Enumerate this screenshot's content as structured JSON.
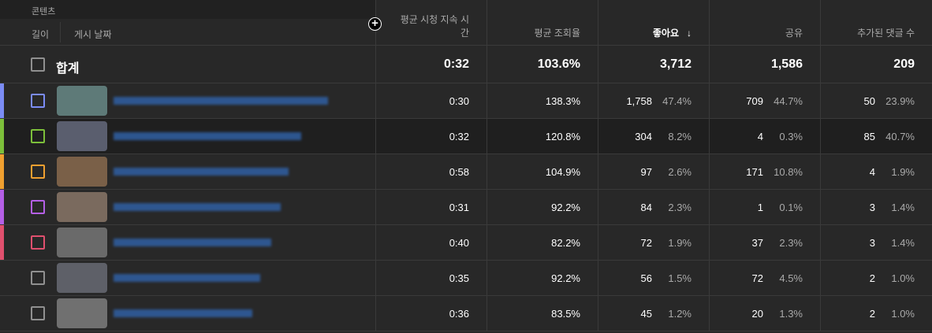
{
  "header": {
    "content": "콘텐츠",
    "length": "길이",
    "publish_date": "게시 날짜",
    "columns": [
      "평균 시청 지속 시간",
      "평균 조회율",
      "좋아요",
      "공유",
      "추가된 댓글 수"
    ],
    "sort_icon": "arrow-down-icon",
    "sorted_column": "좋아요"
  },
  "total": {
    "label": "합계",
    "values": [
      "0:32",
      "103.6%",
      "3,712",
      "1,586",
      "209"
    ]
  },
  "rows": [
    {
      "color": "#7b8cf5",
      "thumb": "#5e7a78",
      "duration": "0:30",
      "rate": "138.3%",
      "likes": "1,758",
      "likes_pct": "47.4%",
      "shares": "709",
      "shares_pct": "44.7%",
      "comments": "50",
      "comments_pct": "23.9%"
    },
    {
      "color": "#7cbf3a",
      "thumb": "#5a5e6e",
      "duration": "0:32",
      "rate": "120.8%",
      "likes": "304",
      "likes_pct": "8.2%",
      "shares": "4",
      "shares_pct": "0.3%",
      "comments": "85",
      "comments_pct": "40.7%"
    },
    {
      "color": "#f0a030",
      "thumb": "#7a6048",
      "duration": "0:58",
      "rate": "104.9%",
      "likes": "97",
      "likes_pct": "2.6%",
      "shares": "171",
      "shares_pct": "10.8%",
      "comments": "4",
      "comments_pct": "1.9%"
    },
    {
      "color": "#b45fe6",
      "thumb": "#7a6a5e",
      "duration": "0:31",
      "rate": "92.2%",
      "likes": "84",
      "likes_pct": "2.3%",
      "shares": "1",
      "shares_pct": "0.1%",
      "comments": "3",
      "comments_pct": "1.4%"
    },
    {
      "color": "#e0506e",
      "thumb": "#6a6a6a",
      "duration": "0:40",
      "rate": "82.2%",
      "likes": "72",
      "likes_pct": "1.9%",
      "shares": "37",
      "shares_pct": "2.3%",
      "comments": "3",
      "comments_pct": "1.4%"
    },
    {
      "color": "",
      "thumb": "#5e6068",
      "duration": "0:35",
      "rate": "92.2%",
      "likes": "56",
      "likes_pct": "1.5%",
      "shares": "72",
      "shares_pct": "4.5%",
      "comments": "2",
      "comments_pct": "1.0%"
    },
    {
      "color": "",
      "thumb": "#707070",
      "duration": "0:36",
      "rate": "83.5%",
      "likes": "45",
      "likes_pct": "1.2%",
      "shares": "20",
      "shares_pct": "1.3%",
      "comments": "2",
      "comments_pct": "1.0%"
    }
  ]
}
